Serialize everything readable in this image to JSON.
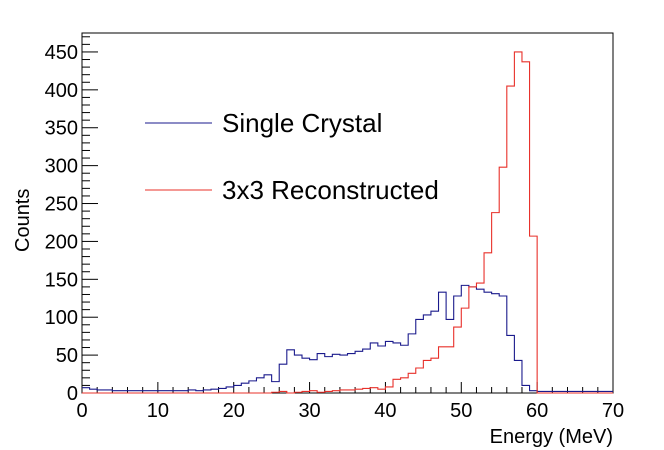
{
  "chart_data": {
    "type": "line",
    "style": "step-histogram",
    "title": "",
    "xlabel": "Energy (MeV)",
    "ylabel": "Counts",
    "xlim": [
      0,
      70
    ],
    "ylim": [
      0,
      475
    ],
    "x_ticks": [
      0,
      10,
      20,
      30,
      40,
      50,
      60,
      70
    ],
    "y_ticks": [
      0,
      50,
      100,
      150,
      200,
      250,
      300,
      350,
      400,
      450
    ],
    "grid": false,
    "legend_position": "upper-left",
    "bin_width": 1,
    "bin_start": 0,
    "series": [
      {
        "name": "Single Crystal",
        "color": "#1a1a8c",
        "values": [
          7,
          5,
          4,
          4,
          3,
          3,
          3,
          3,
          3,
          3,
          3,
          3,
          3,
          3,
          4,
          3,
          4,
          5,
          6,
          8,
          10,
          13,
          16,
          20,
          24,
          15,
          38,
          57,
          50,
          46,
          44,
          52,
          48,
          51,
          50,
          52,
          55,
          58,
          66,
          62,
          68,
          66,
          63,
          78,
          97,
          103,
          108,
          133,
          97,
          128,
          142,
          140,
          137,
          133,
          131,
          128,
          76,
          43,
          10,
          3,
          2,
          2,
          2,
          2,
          2,
          2,
          2,
          2,
          2,
          2
        ]
      },
      {
        "name": "3x3 Reconstructed",
        "color": "#e8302a",
        "values": [
          0,
          0,
          0,
          0,
          0,
          0,
          0,
          0,
          0,
          0,
          0,
          0,
          0,
          0,
          0,
          0,
          0,
          0,
          0,
          0,
          0,
          0,
          0,
          0,
          0,
          1,
          2,
          0,
          1,
          2,
          3,
          1,
          2,
          3,
          4,
          4,
          5,
          6,
          7,
          5,
          8,
          18,
          20,
          26,
          33,
          43,
          46,
          61,
          61,
          87,
          112,
          140,
          145,
          185,
          238,
          298,
          405,
          450,
          437,
          207,
          0,
          0,
          0,
          0,
          0,
          0,
          0,
          0,
          0,
          0
        ]
      }
    ]
  }
}
